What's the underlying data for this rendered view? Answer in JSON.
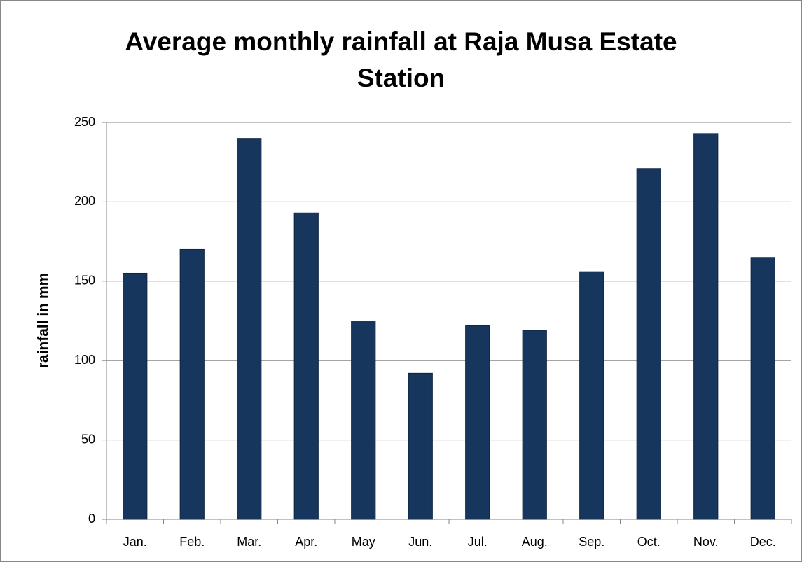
{
  "chart_data": {
    "type": "bar",
    "title": "Average monthly rainfall at Raja Musa Estate Station",
    "y_label": "rainfall in mm",
    "categories": [
      "Jan.",
      "Feb.",
      "Mar.",
      "Apr.",
      "May",
      "Jun.",
      "Jul.",
      "Aug.",
      "Sep.",
      "Oct.",
      "Nov.",
      "Dec."
    ],
    "values": [
      155,
      170,
      240,
      193,
      125,
      92,
      122,
      119,
      156,
      221,
      243,
      165
    ],
    "color": "#17365d",
    "ylim": [
      0,
      250
    ],
    "yticks": [
      0,
      50,
      100,
      150,
      200,
      250
    ],
    "grid": true
  }
}
